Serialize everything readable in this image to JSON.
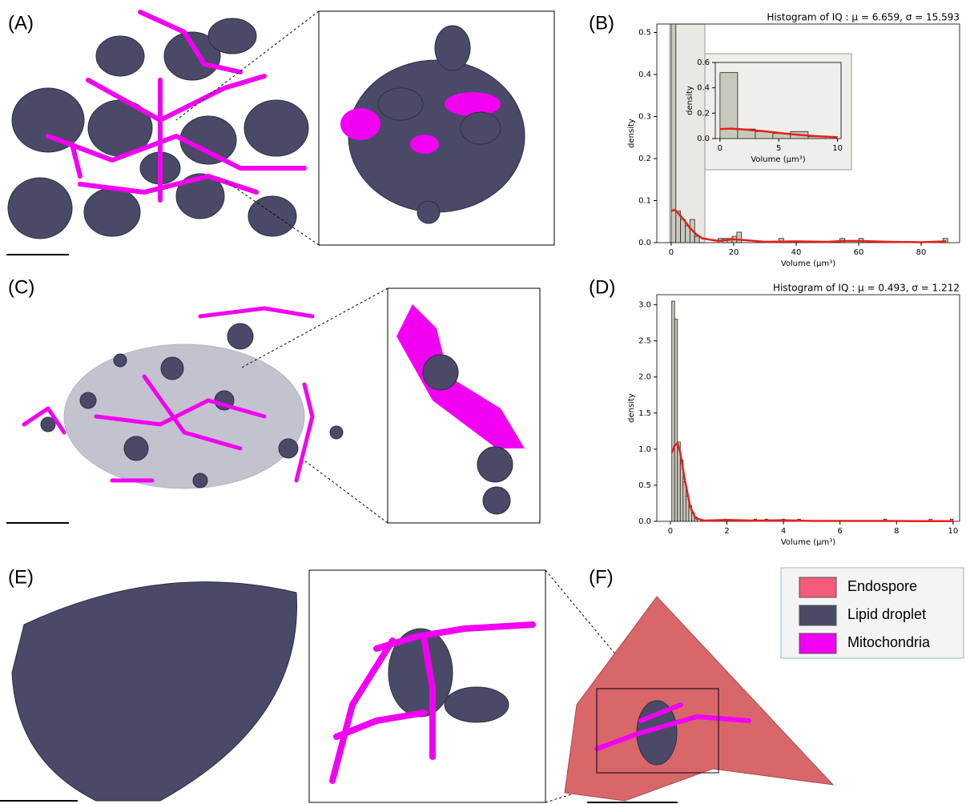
{
  "panels": {
    "labels": [
      "(A)",
      "(B)",
      "(C)",
      "(D)",
      "(E)",
      "(F)"
    ]
  },
  "legend": {
    "entries": [
      {
        "name": "Endospore",
        "color": "#f45b7b"
      },
      {
        "name": "Lipid droplet",
        "color": "#4a4a68"
      },
      {
        "name": "Mitochondria",
        "color": "#f200f2"
      }
    ]
  },
  "chart_data": [
    {
      "type": "histogram",
      "title": "Histogram of IQ :  μ = 6.659,  σ = 15.593",
      "xlabel": "Volume (μm³)",
      "ylabel": "density",
      "color": "#c9c8bd",
      "bins": [
        0,
        1.5,
        3,
        4.5,
        6,
        7.5,
        9,
        15,
        16.5,
        18,
        19.5,
        21,
        22.5,
        34.5,
        36,
        54,
        55.5,
        60,
        61.5,
        87,
        88.5
      ],
      "values": [
        0.52,
        0.075,
        0.055,
        0.04,
        0.055,
        0.015,
        0,
        0.01,
        0.01,
        0.01,
        0.015,
        0.025,
        0,
        0.01,
        0,
        0.01,
        0,
        0.01,
        0,
        0.01
      ],
      "kde": {
        "color": "#e8201a",
        "x": [
          0,
          1,
          2,
          4,
          6,
          8,
          10,
          15,
          20,
          25,
          30,
          40,
          50,
          55,
          60,
          70,
          80,
          88
        ],
        "values": [
          0.075,
          0.078,
          0.072,
          0.055,
          0.035,
          0.02,
          0.01,
          0.004,
          0.008,
          0.005,
          0.002,
          0.003,
          0.002,
          0.004,
          0.004,
          0.002,
          0.001,
          0.003
        ]
      },
      "xlim": [
        -4.6,
        92.3
      ],
      "ylim": [
        0,
        0.52
      ],
      "xticks": [
        0,
        20,
        40,
        60,
        80
      ],
      "yticks": [
        {
          "value": 0,
          "label": "0.0"
        },
        {
          "value": 0.1,
          "label": "0.1"
        },
        {
          "value": 0.2,
          "label": "0.2"
        },
        {
          "value": 0.3,
          "label": "0.3"
        },
        {
          "value": 0.4,
          "label": "0.4"
        },
        {
          "value": 0.5,
          "label": "0.5"
        }
      ]
    },
    {
      "type": "histogram",
      "xlabel": "Volume (μm³)",
      "ylabel": "density",
      "color": "#c9c8bd",
      "bins": [
        0,
        1.5,
        3,
        4.5,
        6,
        7.5,
        9
      ],
      "values": [
        0.52,
        0.075,
        0.055,
        0.04,
        0.055,
        0.015
      ],
      "kde": {
        "color": "#e8201a",
        "x": [
          0,
          1,
          2,
          4,
          6,
          8,
          10
        ],
        "values": [
          0.075,
          0.078,
          0.072,
          0.055,
          0.035,
          0.02,
          0.01
        ]
      },
      "xlim": [
        -0.4,
        10.3
      ],
      "ylim": [
        0,
        0.6
      ],
      "xticks": [
        0,
        5,
        10
      ],
      "yticks": [
        {
          "value": 0,
          "label": "0.0"
        },
        {
          "value": 0.2,
          "label": "0.2"
        },
        {
          "value": 0.4,
          "label": "0.4"
        },
        {
          "value": 0.6,
          "label": "0.6"
        }
      ]
    },
    {
      "type": "histogram",
      "title": "Histogram of IQ :  μ = 0.493,  σ = 1.212",
      "xlabel": "Volume (μm³)",
      "ylabel": "density",
      "color": "#c9c8bd",
      "bins": [
        0.05,
        0.15,
        0.25,
        0.35,
        0.45,
        0.55,
        0.65,
        0.75,
        0.85,
        0.95,
        1.9,
        2.0,
        2.95,
        3.05,
        3.35,
        3.45,
        3.95,
        4.05,
        4.5,
        4.6,
        7.55,
        7.65,
        9.15,
        9.25,
        9.9,
        10.0
      ],
      "values": [
        3.05,
        2.8,
        1.1,
        0.85,
        0.55,
        0.35,
        0.22,
        0.12,
        0.06,
        0,
        0.03,
        0,
        0.03,
        0,
        0.03,
        0,
        0.03,
        0,
        0.03,
        0,
        0.03,
        0,
        0.03,
        0,
        0.03
      ],
      "kde": {
        "color": "#e8201a",
        "x": [
          0.05,
          0.15,
          0.25,
          0.35,
          0.5,
          0.7,
          0.9,
          1.2,
          2,
          3,
          4,
          5,
          7.5,
          9,
          10
        ],
        "values": [
          0.95,
          1.05,
          1.08,
          0.95,
          0.6,
          0.2,
          0.04,
          0.01,
          0.02,
          0.01,
          0.015,
          0.005,
          0.005,
          0.003,
          0.003
        ]
      },
      "xlim": [
        -0.48,
        10.23
      ],
      "ylim": [
        0,
        3.14
      ],
      "xticks": [
        0,
        2,
        4,
        6,
        8,
        10
      ],
      "yticks": [
        {
          "value": 0,
          "label": "0.0"
        },
        {
          "value": 0.5,
          "label": "0.5"
        },
        {
          "value": 1,
          "label": "1.0"
        },
        {
          "value": 1.5,
          "label": "1.5"
        },
        {
          "value": 2,
          "label": "2.0"
        },
        {
          "value": 2.5,
          "label": "2.5"
        },
        {
          "value": 3,
          "label": "3.0"
        }
      ]
    }
  ]
}
